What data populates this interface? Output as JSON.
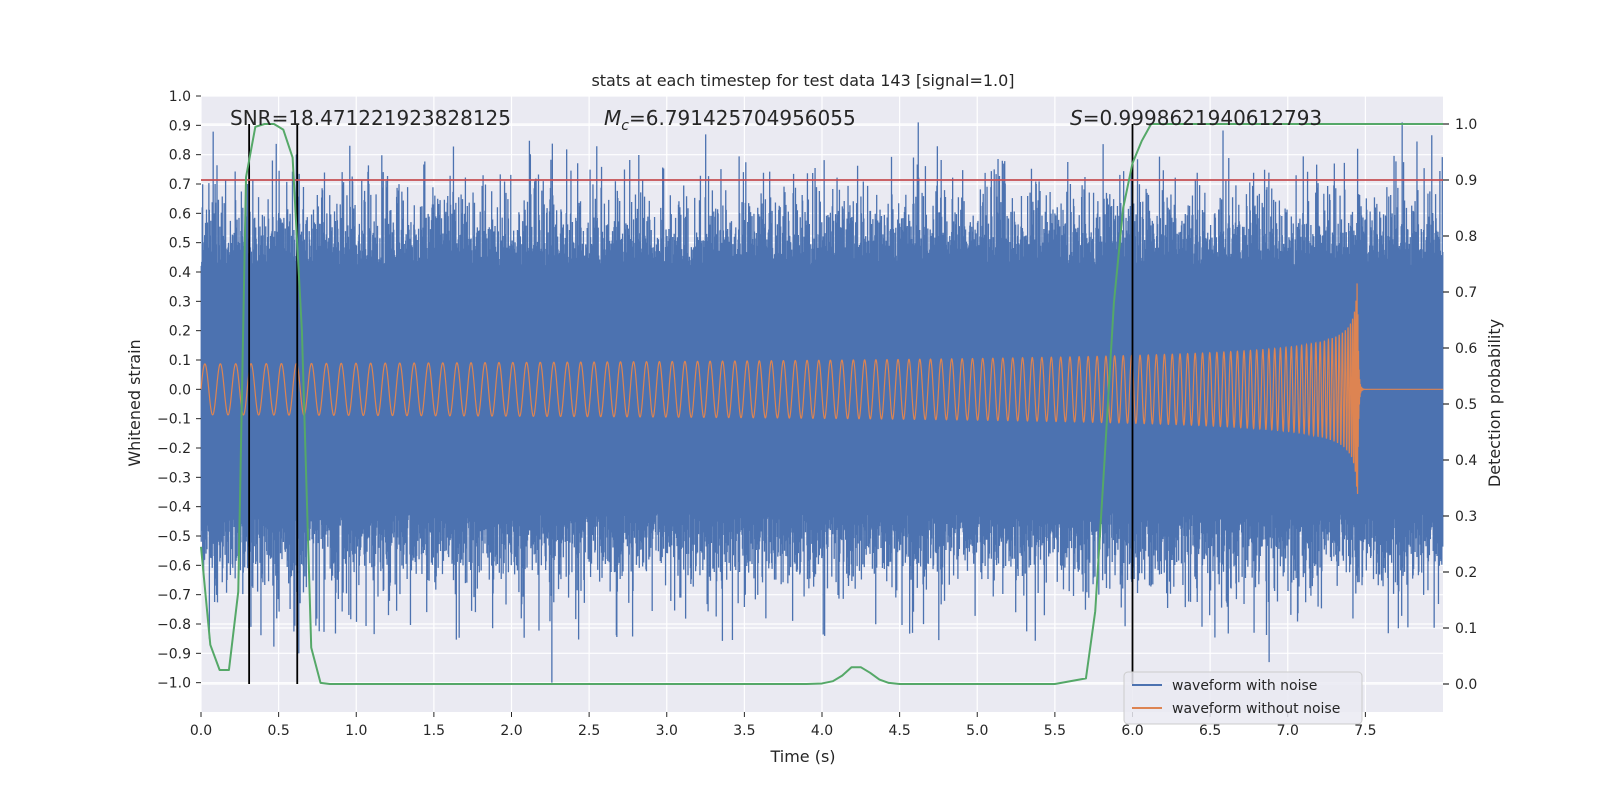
{
  "chart_data": {
    "type": "line",
    "title": "stats at each timestep for test data 143 [signal=1.0]",
    "xlabel": "Time (s)",
    "ylabel": "Whitened strain",
    "y2label": "Detection probability",
    "xlim": [
      0.0,
      8.0
    ],
    "ylim": [
      -1.1,
      1.0
    ],
    "y2lim": [
      -0.05,
      1.05
    ],
    "x_ticks": [
      "0.0",
      "0.5",
      "1.0",
      "1.5",
      "2.0",
      "2.5",
      "3.0",
      "3.5",
      "4.0",
      "4.5",
      "5.0",
      "5.5",
      "6.0",
      "6.5",
      "7.0",
      "7.5"
    ],
    "y_ticks": [
      "1.0",
      "0.9",
      "0.8",
      "0.7",
      "0.6",
      "0.5",
      "0.4",
      "0.3",
      "0.2",
      "0.1",
      "0.0",
      "−0.1",
      "−0.2",
      "−0.3",
      "−0.4",
      "−0.5",
      "−0.6",
      "−0.7",
      "−0.8",
      "−0.9",
      "−1.0"
    ],
    "y2_ticks": [
      "1.0",
      "0.9",
      "0.8",
      "0.7",
      "0.6",
      "0.5",
      "0.4",
      "0.3",
      "0.2",
      "0.1",
      "0.0"
    ],
    "grid": true,
    "legend_position": "bottom-right",
    "annotations": [
      {
        "label": "SNR",
        "value": "18.471221923828125"
      },
      {
        "label": "M",
        "sub": "c",
        "value": "6.791425704956055"
      },
      {
        "label": "S",
        "value": "0.9998621940612793"
      }
    ],
    "series": [
      {
        "name": "waveform with noise",
        "color": "#4c72b0",
        "kind": "noise",
        "amplitude_range": [
          -1.0,
          0.91
        ]
      },
      {
        "name": "waveform without noise",
        "color": "#dd8452",
        "kind": "chirp",
        "merger_time": 7.45,
        "peak_amplitude": 0.37,
        "min_amplitude": -0.57
      },
      {
        "color": "#55a868",
        "kind": "probability",
        "x": [
          0.0,
          0.06,
          0.12,
          0.18,
          0.24,
          0.29,
          0.35,
          0.41,
          0.47,
          0.53,
          0.59,
          0.65,
          0.71,
          0.77,
          0.83,
          0.89,
          1.5,
          2.0,
          2.5,
          3.0,
          3.5,
          3.9,
          4.0,
          4.07,
          4.13,
          4.19,
          4.25,
          4.31,
          4.37,
          4.43,
          4.5,
          5.0,
          5.5,
          5.7,
          5.76,
          5.82,
          5.88,
          5.94,
          6.0,
          6.06,
          6.12,
          6.2,
          7.0,
          7.5,
          8.0
        ],
        "y": [
          0.245,
          0.07,
          0.025,
          0.025,
          0.165,
          0.905,
          0.995,
          1.0,
          1.0,
          0.99,
          0.94,
          0.63,
          0.065,
          0.002,
          0.0,
          0.0,
          0.0,
          0.0,
          0.0,
          0.0,
          0.0,
          0.0,
          0.001,
          0.005,
          0.015,
          0.03,
          0.03,
          0.02,
          0.008,
          0.002,
          0.0,
          0.0,
          0.0,
          0.01,
          0.13,
          0.4,
          0.68,
          0.85,
          0.93,
          0.97,
          1.0,
          1.0,
          1.0,
          1.0,
          1.0
        ]
      },
      {
        "color": "#c44e52",
        "kind": "threshold",
        "y2": 0.9
      },
      {
        "color": "#000000",
        "kind": "vertical-markers",
        "x": [
          0.31,
          0.62,
          6.0
        ]
      }
    ]
  }
}
